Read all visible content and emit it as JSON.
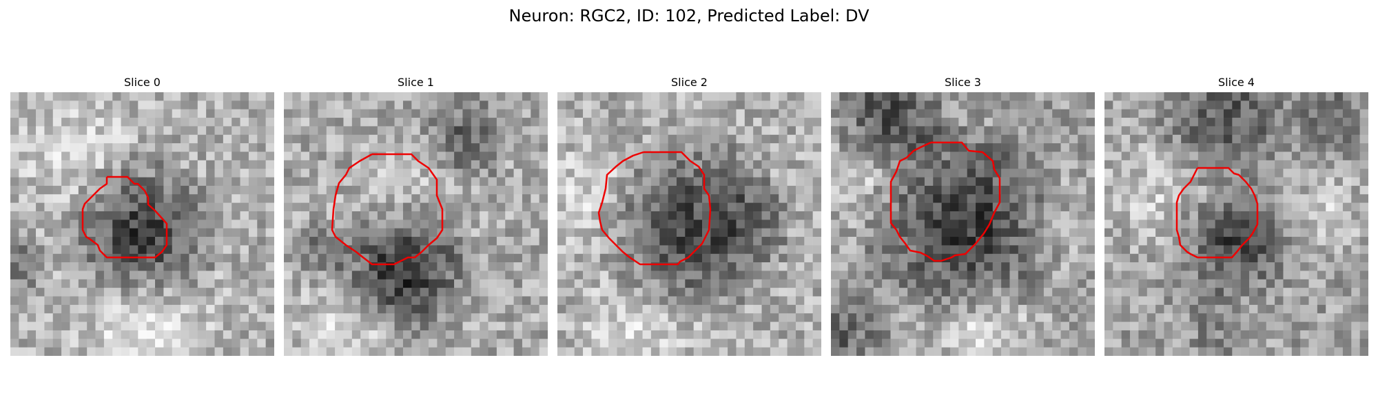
{
  "figure": {
    "title": "Neuron: RGC2, ID: 102, Predicted Label: DV"
  },
  "panels": [
    {
      "title": "Slice 0"
    },
    {
      "title": "Slice 1"
    },
    {
      "title": "Slice 2"
    },
    {
      "title": "Slice 3"
    },
    {
      "title": "Slice 4"
    }
  ],
  "colors": {
    "contour": "#ee0000"
  }
}
